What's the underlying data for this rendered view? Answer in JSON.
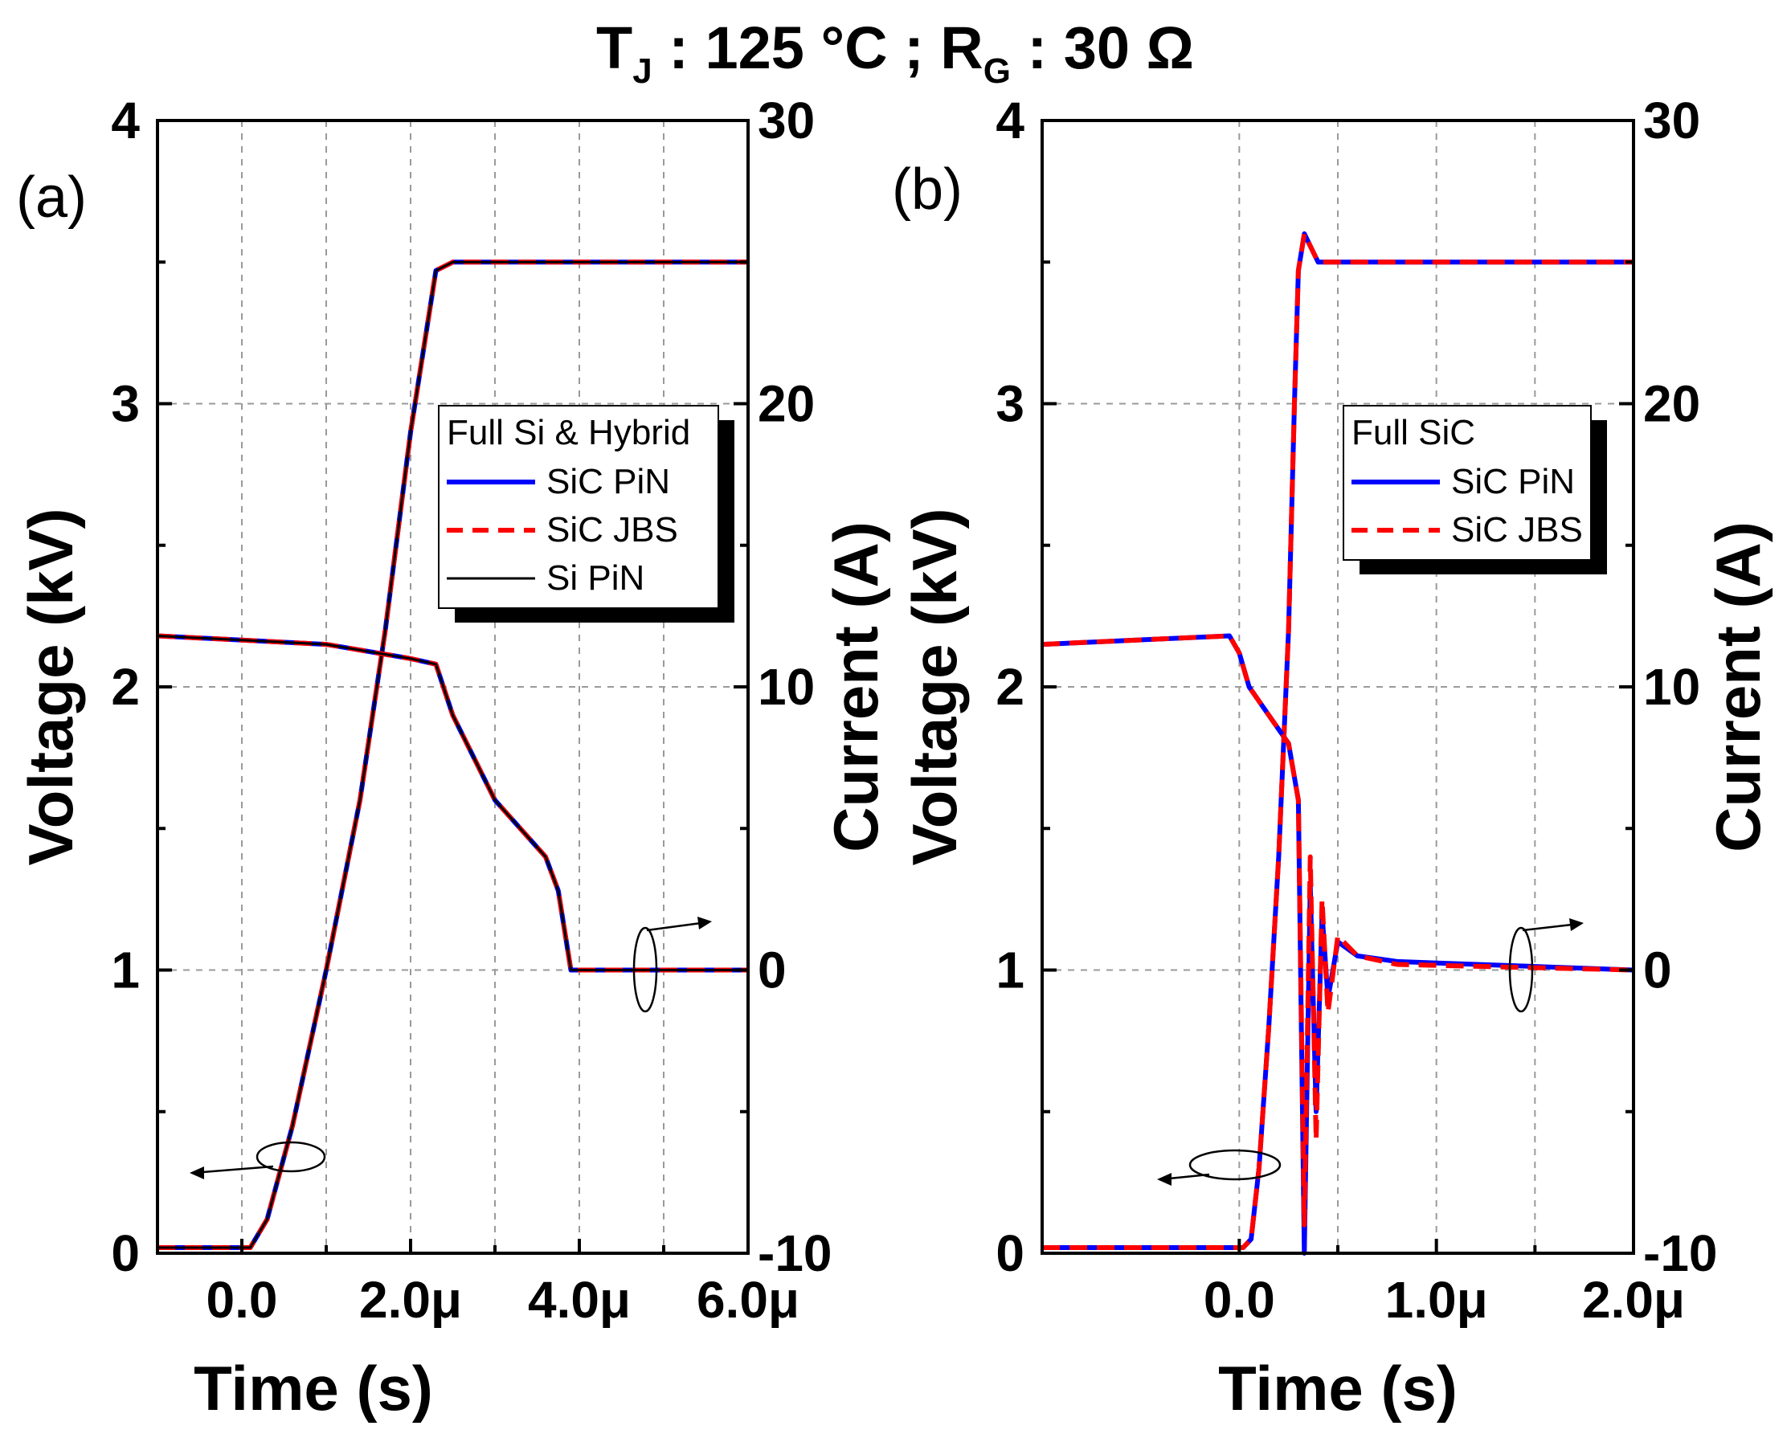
{
  "figure_title": {
    "t_main": "T",
    "t_sub": "J",
    "temp_text": " : 125 °C ; R",
    "r_sub": "G",
    "r_text": " : 30 Ω"
  },
  "colors": {
    "sic_pin": "#0000ff",
    "sic_jbs": "#ff0000",
    "si_pin": "#000000",
    "grid": "#9a9a9a"
  },
  "chart_data": [
    {
      "type": "line",
      "panel_label": "(a)",
      "title": "T_J : 125 °C ; R_G : 30 Ω",
      "xlabel": "Time (s)",
      "ylabel": "Voltage (kV)",
      "y2label": "Current (A)",
      "xlim": [
        -1.0,
        6.0
      ],
      "ylim": [
        0,
        4
      ],
      "y2lim": [
        -10,
        30
      ],
      "x_ticks": [
        0,
        2,
        4,
        6
      ],
      "x_tick_labels": [
        "0.0",
        "2.0μ",
        "4.0μ",
        "6.0μ"
      ],
      "y_ticks": [
        0,
        1,
        2,
        3,
        4
      ],
      "y_tick_labels": [
        "0",
        "1",
        "2",
        "3",
        "4"
      ],
      "y2_ticks": [
        -10,
        0,
        10,
        20,
        30
      ],
      "y2_tick_labels": [
        "-10",
        "0",
        "10",
        "20",
        "30"
      ],
      "grid": true,
      "legend_title": "Full Si & Hybrid",
      "legend_position": "center-right",
      "series": [
        {
          "name": "SiC PiN",
          "style": "solid",
          "color": "#0000ff",
          "axis": "left",
          "x": [
            -1.0,
            0.1,
            0.3,
            0.6,
            1.0,
            1.4,
            1.7,
            2.0,
            2.3,
            2.5,
            6.0
          ],
          "y": [
            0.02,
            0.02,
            0.12,
            0.45,
            1.0,
            1.6,
            2.2,
            2.9,
            3.47,
            3.5,
            3.5
          ]
        },
        {
          "name": "SiC JBS",
          "style": "dashed",
          "color": "#ff0000",
          "axis": "left",
          "x": [
            -1.0,
            0.1,
            0.3,
            0.6,
            1.0,
            1.4,
            1.7,
            2.0,
            2.3,
            2.5,
            6.0
          ],
          "y": [
            0.02,
            0.02,
            0.12,
            0.45,
            1.0,
            1.6,
            2.2,
            2.9,
            3.47,
            3.5,
            3.5
          ]
        },
        {
          "name": "Si PiN",
          "style": "solid",
          "color": "#000000",
          "axis": "left",
          "x": [
            -1.0,
            0.1,
            0.3,
            0.6,
            1.0,
            1.4,
            1.7,
            2.0,
            2.3,
            2.5,
            6.0
          ],
          "y": [
            0.02,
            0.02,
            0.12,
            0.45,
            1.0,
            1.6,
            2.2,
            2.9,
            3.47,
            3.5,
            3.5
          ]
        },
        {
          "name": "SiC PiN current",
          "style": "solid",
          "color": "#0000ff",
          "axis": "right",
          "x": [
            -1.0,
            1.0,
            2.0,
            2.3,
            2.5,
            3.0,
            3.6,
            3.75,
            3.9,
            6.0
          ],
          "y": [
            11.8,
            11.5,
            11.0,
            10.8,
            9.0,
            6.0,
            4.0,
            2.8,
            0.0,
            0.0
          ]
        },
        {
          "name": "SiC JBS current",
          "style": "dashed",
          "color": "#ff0000",
          "axis": "right",
          "x": [
            -1.0,
            1.0,
            2.0,
            2.3,
            2.5,
            3.0,
            3.6,
            3.75,
            3.9,
            6.0
          ],
          "y": [
            11.8,
            11.5,
            11.0,
            10.8,
            9.0,
            6.0,
            4.0,
            2.8,
            0.0,
            0.0
          ]
        },
        {
          "name": "Si PiN current",
          "style": "solid",
          "color": "#000000",
          "axis": "right",
          "x": [
            -1.0,
            1.0,
            2.0,
            2.3,
            2.5,
            3.0,
            3.6,
            3.75,
            3.9,
            6.0
          ],
          "y": [
            11.8,
            11.5,
            11.0,
            10.8,
            9.0,
            6.0,
            4.0,
            2.8,
            0.0,
            0.0
          ]
        }
      ]
    },
    {
      "type": "line",
      "panel_label": "(b)",
      "title": "T_J : 125 °C ; R_G : 30 Ω",
      "xlabel": "Time (s)",
      "ylabel": "Voltage (kV)",
      "y2label": "Current (A)",
      "xlim": [
        -1.0,
        2.0
      ],
      "ylim": [
        0,
        4
      ],
      "y2lim": [
        -10,
        30
      ],
      "x_ticks": [
        0,
        1,
        2
      ],
      "x_tick_labels": [
        "0.0",
        "1.0μ",
        "2.0μ"
      ],
      "y_ticks": [
        0,
        1,
        2,
        3,
        4
      ],
      "y_tick_labels": [
        "0",
        "1",
        "2",
        "3",
        "4"
      ],
      "y2_ticks": [
        -10,
        0,
        10,
        20,
        30
      ],
      "y2_tick_labels": [
        "-10",
        "0",
        "10",
        "20",
        "30"
      ],
      "grid": true,
      "legend_title": "Full SiC",
      "legend_position": "center-right",
      "series": [
        {
          "name": "SiC PiN",
          "style": "solid",
          "color": "#0000ff",
          "axis": "left",
          "x": [
            -1.0,
            0.02,
            0.06,
            0.1,
            0.15,
            0.2,
            0.25,
            0.28,
            0.3,
            0.33,
            0.4,
            2.0
          ],
          "y": [
            0.02,
            0.02,
            0.05,
            0.3,
            0.8,
            1.4,
            2.2,
            3.0,
            3.47,
            3.6,
            3.5,
            3.5
          ]
        },
        {
          "name": "SiC JBS",
          "style": "dashed",
          "color": "#ff0000",
          "axis": "left",
          "x": [
            -1.0,
            0.02,
            0.06,
            0.1,
            0.15,
            0.2,
            0.25,
            0.28,
            0.3,
            0.33,
            0.4,
            2.0
          ],
          "y": [
            0.02,
            0.02,
            0.05,
            0.3,
            0.8,
            1.4,
            2.2,
            3.0,
            3.47,
            3.6,
            3.5,
            3.5
          ]
        },
        {
          "name": "SiC PiN current",
          "style": "solid",
          "color": "#0000ff",
          "axis": "right",
          "x": [
            -1.0,
            -0.05,
            0.0,
            0.05,
            0.15,
            0.25,
            0.3,
            0.33,
            0.36,
            0.39,
            0.42,
            0.45,
            0.5,
            0.6,
            0.8,
            2.0
          ],
          "y": [
            11.5,
            11.8,
            11.2,
            10.0,
            9.0,
            8.0,
            6.0,
            -10.0,
            3.0,
            -5.0,
            2.0,
            -1.0,
            1.0,
            0.5,
            0.3,
            0.0
          ]
        },
        {
          "name": "SiC JBS current",
          "style": "dashed",
          "color": "#ff0000",
          "axis": "right",
          "x": [
            -1.0,
            -0.05,
            0.0,
            0.05,
            0.15,
            0.25,
            0.3,
            0.33,
            0.36,
            0.39,
            0.42,
            0.45,
            0.5,
            0.6,
            0.8,
            2.0
          ],
          "y": [
            11.5,
            11.8,
            11.2,
            10.0,
            9.0,
            8.0,
            6.0,
            -9.0,
            4.0,
            -6.0,
            2.5,
            -1.5,
            1.2,
            0.5,
            0.2,
            0.0
          ]
        }
      ]
    }
  ]
}
